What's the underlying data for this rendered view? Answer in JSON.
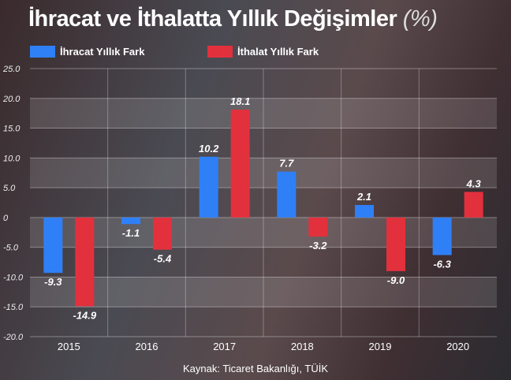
{
  "title": "İhracat ve İthalatta Yıllık Değişimler",
  "title_unit": "(%)",
  "source": "Kaynak: Ticaret Bakanlığı, TÜİK",
  "colors": {
    "ihracat": "#2f80f6",
    "ithalat": "#e3303d"
  },
  "chart_data": {
    "type": "bar",
    "title": "İhracat ve İthalatta Yıllık Değişimler (%)",
    "categories": [
      "2015",
      "2016",
      "2017",
      "2018",
      "2019",
      "2020"
    ],
    "series": [
      {
        "name": "İhracat Yıllık Fark",
        "values": [
          -9.3,
          -1.1,
          10.2,
          7.7,
          2.1,
          -6.3
        ],
        "labels": [
          "-9.3",
          "-1.1",
          "10.2",
          "7.7",
          "2.1",
          "-6.3"
        ]
      },
      {
        "name": "İthalat Yıllık Fark",
        "values": [
          -14.9,
          -5.4,
          18.1,
          -3.2,
          -9.0,
          4.3
        ],
        "labels": [
          "-14.9",
          "-5.4",
          "18.1",
          "-3.2",
          "-9.0",
          "4.3"
        ]
      }
    ],
    "ylim": [
      -20,
      25
    ],
    "yticks": [
      "25.0",
      "20.0",
      "15.0",
      "10.0",
      "5.0",
      "0",
      "-5.0",
      "-10.0",
      "-15.0",
      "-20.0"
    ],
    "legend": "top-left",
    "grid": true
  }
}
